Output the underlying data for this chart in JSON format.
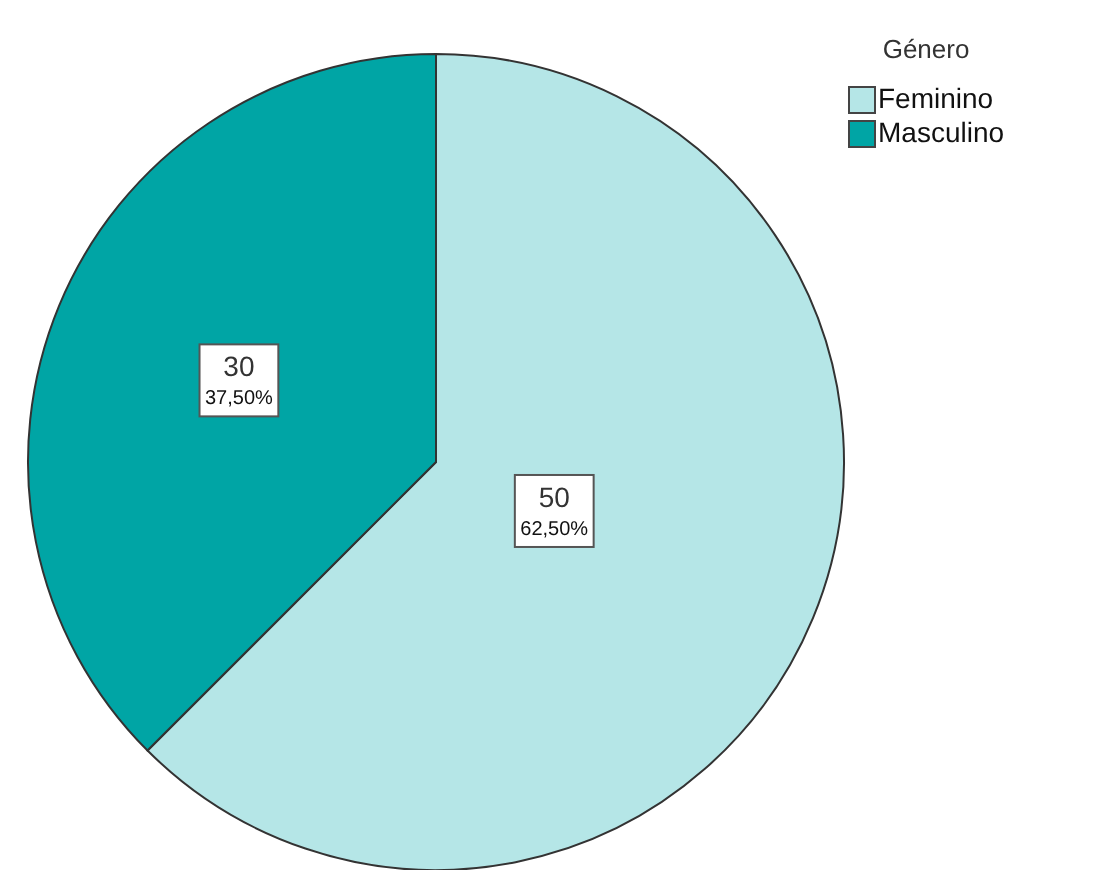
{
  "chart_data": {
    "type": "pie",
    "legend_title": "Género",
    "categories": [
      "Feminino",
      "Masculino"
    ],
    "values": [
      50,
      30
    ],
    "colors": [
      "#b5e6e7",
      "#00a5a5"
    ],
    "value_labels": [
      "50\n62,50%",
      "30\n37,50%"
    ],
    "legend": "top right"
  }
}
